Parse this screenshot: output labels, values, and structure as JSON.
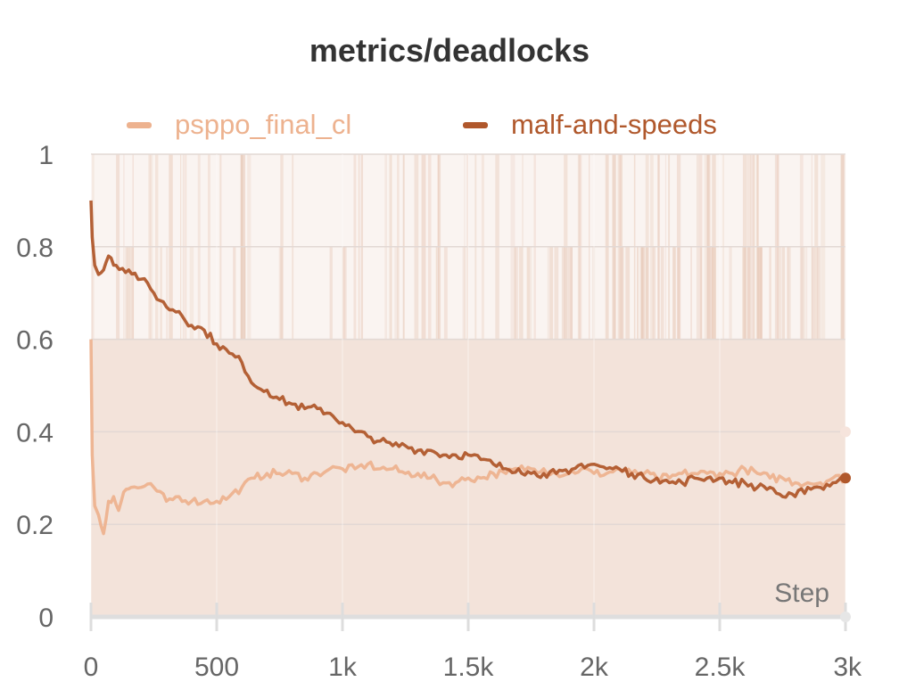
{
  "chart_data": {
    "type": "line",
    "title": "metrics/deadlocks",
    "xlabel": "Step",
    "ylabel": "",
    "xlim": [
      0,
      3000
    ],
    "ylim": [
      0,
      1
    ],
    "x_ticks": [
      {
        "value": 0,
        "label": "0"
      },
      {
        "value": 500,
        "label": "500"
      },
      {
        "value": 1000,
        "label": "1k"
      },
      {
        "value": 1500,
        "label": "1.5k"
      },
      {
        "value": 2000,
        "label": "2k"
      },
      {
        "value": 2500,
        "label": "2.5k"
      },
      {
        "value": 3000,
        "label": "3k"
      }
    ],
    "y_ticks": [
      {
        "value": 0,
        "label": "0"
      },
      {
        "value": 0.2,
        "label": "0.2"
      },
      {
        "value": 0.4,
        "label": "0.4"
      },
      {
        "value": 0.6,
        "label": "0.6"
      },
      {
        "value": 0.8,
        "label": "0.8"
      },
      {
        "value": 1,
        "label": "1"
      }
    ],
    "grid": true,
    "legend_position": "top",
    "raw_band": {
      "color": "#f2e0d6",
      "low": 0,
      "high": 0.6
    },
    "series": [
      {
        "name": "psppo_final_cl",
        "color": "#edb28f",
        "x": [
          0,
          5,
          15,
          30,
          50,
          70,
          90,
          110,
          130,
          160,
          200,
          250,
          300,
          350,
          400,
          450,
          500,
          550,
          600,
          650,
          700,
          750,
          800,
          850,
          900,
          950,
          1000,
          1050,
          1100,
          1150,
          1200,
          1250,
          1300,
          1350,
          1400,
          1450,
          1500,
          1550,
          1600,
          1650,
          1700,
          1750,
          1800,
          1850,
          1900,
          1950,
          2000,
          2050,
          2100,
          2150,
          2200,
          2250,
          2300,
          2350,
          2400,
          2450,
          2500,
          2550,
          2600,
          2650,
          2700,
          2750,
          2800,
          2850,
          2900,
          2950,
          3000
        ],
        "values": [
          0.6,
          0.35,
          0.24,
          0.22,
          0.18,
          0.25,
          0.26,
          0.23,
          0.27,
          0.28,
          0.28,
          0.28,
          0.25,
          0.26,
          0.25,
          0.25,
          0.25,
          0.26,
          0.28,
          0.3,
          0.31,
          0.31,
          0.31,
          0.3,
          0.31,
          0.32,
          0.32,
          0.32,
          0.33,
          0.32,
          0.32,
          0.31,
          0.31,
          0.3,
          0.29,
          0.29,
          0.3,
          0.3,
          0.31,
          0.31,
          0.32,
          0.32,
          0.32,
          0.31,
          0.31,
          0.32,
          0.31,
          0.31,
          0.32,
          0.31,
          0.31,
          0.3,
          0.3,
          0.31,
          0.31,
          0.31,
          0.31,
          0.31,
          0.32,
          0.31,
          0.3,
          0.3,
          0.29,
          0.29,
          0.29,
          0.3,
          0.3
        ]
      },
      {
        "name": "malf-and-speeds",
        "color": "#b0582c",
        "x": [
          0,
          5,
          15,
          30,
          50,
          70,
          100,
          150,
          200,
          250,
          300,
          350,
          400,
          450,
          500,
          550,
          600,
          650,
          700,
          750,
          800,
          850,
          900,
          950,
          1000,
          1050,
          1100,
          1150,
          1200,
          1250,
          1300,
          1350,
          1400,
          1450,
          1500,
          1550,
          1600,
          1650,
          1700,
          1750,
          1800,
          1850,
          1900,
          1950,
          2000,
          2050,
          2100,
          2150,
          2200,
          2250,
          2300,
          2350,
          2400,
          2450,
          2500,
          2550,
          2600,
          2650,
          2700,
          2750,
          2800,
          2850,
          2900,
          2950,
          3000
        ],
        "values": [
          0.9,
          0.82,
          0.76,
          0.74,
          0.75,
          0.78,
          0.76,
          0.75,
          0.73,
          0.7,
          0.67,
          0.66,
          0.63,
          0.62,
          0.59,
          0.57,
          0.55,
          0.5,
          0.49,
          0.47,
          0.46,
          0.45,
          0.45,
          0.44,
          0.42,
          0.4,
          0.39,
          0.38,
          0.37,
          0.37,
          0.36,
          0.36,
          0.35,
          0.35,
          0.35,
          0.34,
          0.33,
          0.32,
          0.32,
          0.31,
          0.31,
          0.31,
          0.31,
          0.33,
          0.33,
          0.32,
          0.32,
          0.31,
          0.3,
          0.3,
          0.29,
          0.29,
          0.3,
          0.3,
          0.3,
          0.29,
          0.29,
          0.28,
          0.28,
          0.26,
          0.26,
          0.28,
          0.28,
          0.29,
          0.3
        ]
      }
    ]
  }
}
